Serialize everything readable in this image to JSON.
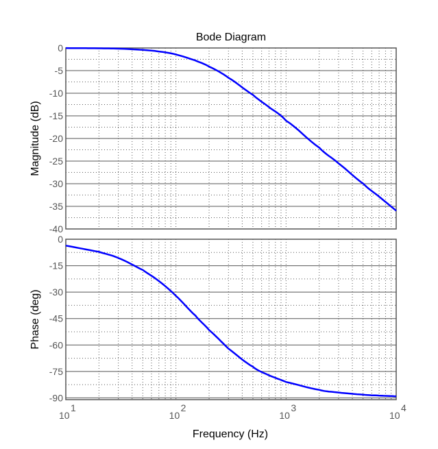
{
  "chart_data": [
    {
      "type": "line",
      "title": "Bode Diagram",
      "xlabel": "Frequency  (Hz)",
      "ylabel": "Magnitude (dB)",
      "xscale": "log",
      "xlim": [
        10,
        10000
      ],
      "ylim": [
        -40,
        0
      ],
      "yticks": [
        0,
        -5,
        -10,
        -15,
        -20,
        -25,
        -30,
        -35,
        -40
      ],
      "xticks": [
        {
          "base": "10",
          "exp": "1"
        },
        {
          "base": "10",
          "exp": "2"
        },
        {
          "base": "10",
          "exp": "3"
        },
        {
          "base": "10",
          "exp": "4"
        }
      ],
      "grid": true,
      "color": "#0000ff",
      "x": [
        10,
        20,
        30,
        50,
        70,
        100,
        150,
        200,
        300,
        500,
        700,
        1000,
        2000,
        3000,
        5000,
        7000,
        10000
      ],
      "y": [
        -0.02,
        -0.07,
        -0.15,
        -0.41,
        -0.77,
        -1.44,
        -2.76,
        -4.12,
        -6.58,
        -10.36,
        -13.08,
        -16.07,
        -22.01,
        -25.52,
        -29.95,
        -32.87,
        -35.97
      ]
    },
    {
      "type": "line",
      "ylabel": "Phase (deg)",
      "xscale": "log",
      "xlim": [
        10,
        10000
      ],
      "ylim": [
        -91,
        0
      ],
      "yticks": [
        0,
        -15,
        -30,
        -45,
        -60,
        -75,
        -90
      ],
      "grid": true,
      "color": "#0000ff",
      "x": [
        10,
        20,
        30,
        50,
        70,
        100,
        150,
        200,
        300,
        500,
        700,
        1000,
        2000,
        3000,
        5000,
        7000,
        10000
      ],
      "y": [
        -3.6,
        -7.16,
        -10.67,
        -17.44,
        -23.74,
        -32.14,
        -43.3,
        -51.49,
        -62.05,
        -72.34,
        -77.18,
        -80.96,
        -85.45,
        -86.96,
        -88.18,
        -88.7,
        -89.09
      ]
    }
  ]
}
